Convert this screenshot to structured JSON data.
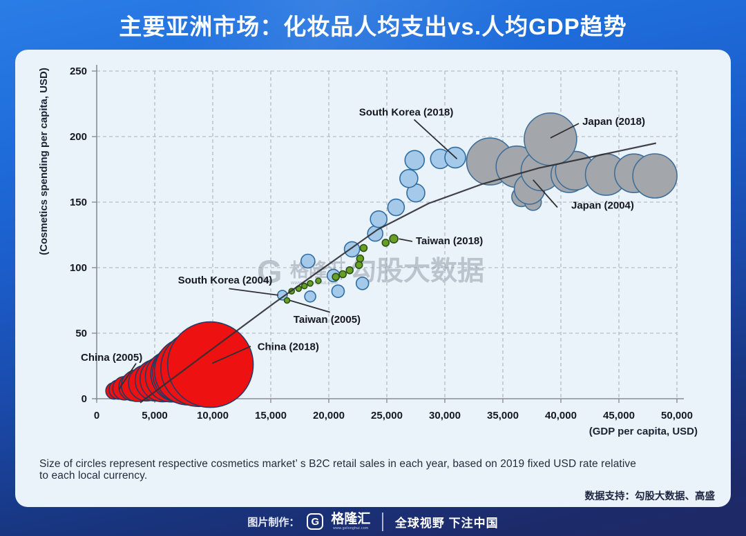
{
  "title": "主要亚洲市场：化妆品人均支出vs.人均GDP趋势",
  "watermark": {
    "logo_letter": "G",
    "brand": "格隆汇",
    "site": "www.gelonghui.com",
    "big_text": "勾股大数据"
  },
  "notes": {
    "line1": "Size of circles represent respective cosmetics market’ s B2C retail sales in each year, based on 2019 fixed USD rate relative",
    "line2": "to each local currency.",
    "source": "数据支持：勾股大数据、高盛"
  },
  "footer": {
    "made_by": "图片制作：",
    "logo_letter": "G",
    "brand": "格隆汇",
    "site": "www.gelonghui.com",
    "slogan": "全球视野 下注中国"
  },
  "chart_data": {
    "type": "scatter",
    "xlabel": "(GDP per capita, USD)",
    "ylabel": "(Cosmetics spending per capita, USD)",
    "xlim": [
      0,
      50000
    ],
    "ylim": [
      0,
      250
    ],
    "x_ticks": [
      0,
      5000,
      10000,
      15000,
      20000,
      25000,
      30000,
      35000,
      40000,
      45000,
      50000
    ],
    "x_tick_labels": [
      "0",
      "5,000",
      "10,000",
      "15,000",
      "20,000",
      "25,000",
      "30,000",
      "35,000",
      "40,000",
      "45,000",
      "50,000"
    ],
    "y_ticks": [
      0,
      50,
      100,
      150,
      200,
      250
    ],
    "y_tick_labels": [
      "0",
      "50",
      "100",
      "150",
      "200",
      "250"
    ],
    "grid": "dashed",
    "series": [
      {
        "key": "china",
        "name": "China",
        "color": "#ee1111",
        "stroke": "#263a63",
        "points": [
          [
            1500,
            6,
            12
          ],
          [
            1900,
            7,
            14
          ],
          [
            2400,
            8,
            17
          ],
          [
            3100,
            9,
            20
          ],
          [
            3500,
            10,
            23
          ],
          [
            4300,
            12,
            26
          ],
          [
            5100,
            14,
            30
          ],
          [
            5700,
            15,
            33
          ],
          [
            6400,
            17,
            37
          ],
          [
            7100,
            19,
            41
          ],
          [
            7500,
            20,
            45
          ],
          [
            7900,
            21,
            49
          ],
          [
            8800,
            23,
            55
          ],
          [
            9800,
            26,
            62
          ]
        ]
      },
      {
        "key": "south-korea",
        "name": "South Korea",
        "color": "#a5c9e9",
        "stroke": "#2e6da4",
        "points": [
          [
            16000,
            79,
            7
          ],
          [
            18400,
            78,
            8
          ],
          [
            20800,
            82,
            9
          ],
          [
            22900,
            88,
            9
          ],
          [
            20400,
            94,
            9
          ],
          [
            18200,
            105,
            10
          ],
          [
            22000,
            114,
            11
          ],
          [
            24000,
            126,
            11
          ],
          [
            24300,
            137,
            12
          ],
          [
            25800,
            146,
            12
          ],
          [
            27500,
            157,
            13
          ],
          [
            26900,
            168,
            13
          ],
          [
            27400,
            182,
            14
          ],
          [
            29600,
            183,
            14
          ],
          [
            30900,
            184,
            15
          ]
        ]
      },
      {
        "key": "japan",
        "name": "Japan",
        "color": "#a3a7ab",
        "stroke": "#3f6e99",
        "points": [
          [
            33900,
            181,
            34
          ],
          [
            36200,
            177,
            30
          ],
          [
            36600,
            154,
            14
          ],
          [
            37600,
            150,
            12
          ],
          [
            37300,
            160,
            22
          ],
          [
            38300,
            174,
            29
          ],
          [
            40700,
            171,
            26
          ],
          [
            41200,
            174,
            28
          ],
          [
            43900,
            171,
            30
          ],
          [
            46300,
            172,
            28
          ],
          [
            48100,
            170,
            32
          ],
          [
            39100,
            198,
            38
          ]
        ]
      },
      {
        "key": "taiwan",
        "name": "Taiwan",
        "color": "#68a025",
        "stroke": "#2d5016",
        "points": [
          [
            16400,
            75,
            4
          ],
          [
            16800,
            82,
            4
          ],
          [
            17400,
            84,
            4
          ],
          [
            17900,
            86,
            4
          ],
          [
            18400,
            88,
            4
          ],
          [
            19100,
            90,
            4
          ],
          [
            20600,
            93,
            5
          ],
          [
            21200,
            95,
            5
          ],
          [
            21800,
            98,
            5
          ],
          [
            22600,
            102,
            5
          ],
          [
            22700,
            107,
            5
          ],
          [
            23000,
            115,
            5
          ],
          [
            24900,
            119,
            5
          ],
          [
            25600,
            122,
            6
          ]
        ]
      }
    ],
    "trend_line": {
      "color": "#2f2f33",
      "points": [
        [
          3750,
          -3
        ],
        [
          9500,
          35
        ],
        [
          15300,
          73
        ],
        [
          19900,
          102
        ],
        [
          24200,
          129
        ],
        [
          28600,
          149
        ],
        [
          33300,
          164
        ],
        [
          38100,
          176
        ],
        [
          42900,
          185
        ],
        [
          48200,
          195
        ]
      ]
    },
    "annotations": [
      {
        "label": "South Korea (2018)",
        "text_at": [
          22600,
          216
        ],
        "line": [
          27350,
          213,
          31050,
          183
        ]
      },
      {
        "label": "Japan (2018)",
        "text_at": [
          41850,
          209
        ],
        "line": [
          41550,
          210,
          39100,
          199
        ]
      },
      {
        "label": "Japan (2004)",
        "text_at": [
          40890,
          145
        ],
        "line": [
          39700,
          146,
          37600,
          167
        ]
      },
      {
        "label": "Taiwan (2018)",
        "text_at": [
          27500,
          118
        ],
        "line": [
          27200,
          120,
          26050,
          122
        ]
      },
      {
        "label": "South Korea (2004)",
        "text_at": [
          7000,
          88
        ],
        "line": [
          11400,
          84,
          15650,
          79
        ]
      },
      {
        "label": "Taiwan (2005)",
        "text_at": [
          16950,
          58
        ],
        "line": [
          20100,
          66,
          16650,
          75
        ]
      },
      {
        "label": "China (2018)",
        "text_at": [
          13850,
          37
        ],
        "line": [
          13270,
          40,
          9950,
          27
        ]
      },
      {
        "label": "China (2005)",
        "text_at": [
          -1370,
          29
        ],
        "line": [
          3390,
          27,
          1900,
          7
        ]
      }
    ]
  }
}
